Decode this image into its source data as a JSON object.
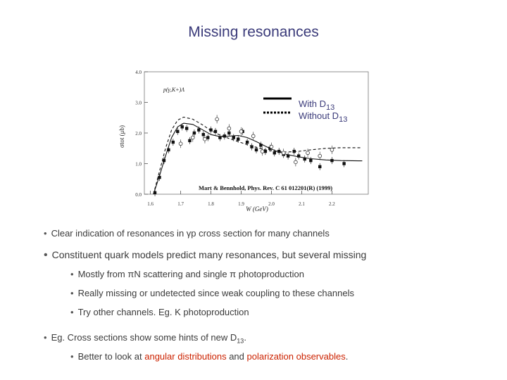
{
  "slide": {
    "title": "Missing resonances"
  },
  "chart_data": {
    "type": "scatter",
    "title": "",
    "inset_label": "p(γ,K+)Λ",
    "xlabel": "W (GeV)",
    "ylabel": "σtot (μb)",
    "xlim": [
      1.58,
      2.32
    ],
    "ylim": [
      0.0,
      4.0
    ],
    "x_ticks": [
      "1.6",
      "1.7",
      "1.8",
      "1.9",
      "2.0",
      "2.1",
      "2.2"
    ],
    "y_ticks": [
      "0.0",
      "1.0",
      "2.0",
      "3.0",
      "4.0"
    ],
    "legend": {
      "placement": "top-right",
      "with_label": "With D13",
      "without_label": "Without D13"
    },
    "citation": "Mart & Bennhold, Phys. Rev. C 61 012201(R) (1999)",
    "series": [
      {
        "name": "With D13",
        "style": "solid",
        "points": [
          [
            1.61,
            0.0
          ],
          [
            1.63,
            0.6
          ],
          [
            1.65,
            1.25
          ],
          [
            1.67,
            1.85
          ],
          [
            1.69,
            2.2
          ],
          [
            1.71,
            2.32
          ],
          [
            1.74,
            2.28
          ],
          [
            1.77,
            2.12
          ],
          [
            1.8,
            1.95
          ],
          [
            1.83,
            1.88
          ],
          [
            1.86,
            1.9
          ],
          [
            1.89,
            1.92
          ],
          [
            1.92,
            1.85
          ],
          [
            1.95,
            1.72
          ],
          [
            1.98,
            1.57
          ],
          [
            2.01,
            1.43
          ],
          [
            2.05,
            1.3
          ],
          [
            2.09,
            1.22
          ],
          [
            2.13,
            1.16
          ],
          [
            2.18,
            1.12
          ],
          [
            2.23,
            1.1
          ],
          [
            2.3,
            1.09
          ]
        ]
      },
      {
        "name": "Without D13",
        "style": "dashed",
        "points": [
          [
            1.61,
            0.0
          ],
          [
            1.63,
            0.75
          ],
          [
            1.65,
            1.5
          ],
          [
            1.67,
            2.1
          ],
          [
            1.69,
            2.42
          ],
          [
            1.71,
            2.52
          ],
          [
            1.74,
            2.45
          ],
          [
            1.77,
            2.28
          ],
          [
            1.8,
            2.08
          ],
          [
            1.83,
            1.93
          ],
          [
            1.86,
            1.82
          ],
          [
            1.89,
            1.72
          ],
          [
            1.92,
            1.62
          ],
          [
            1.95,
            1.53
          ],
          [
            1.98,
            1.45
          ],
          [
            2.01,
            1.4
          ],
          [
            2.05,
            1.38
          ],
          [
            2.09,
            1.4
          ],
          [
            2.13,
            1.45
          ],
          [
            2.18,
            1.5
          ],
          [
            2.23,
            1.52
          ],
          [
            2.3,
            1.52
          ]
        ]
      }
    ],
    "data_filled": [
      [
        1.615,
        0.05
      ],
      [
        1.63,
        0.55
      ],
      [
        1.645,
        1.1
      ],
      [
        1.66,
        1.45
      ],
      [
        1.675,
        1.7
      ],
      [
        1.69,
        2.05
      ],
      [
        1.705,
        2.2
      ],
      [
        1.72,
        2.15
      ],
      [
        1.73,
        1.75
      ],
      [
        1.745,
        2.0
      ],
      [
        1.76,
        2.1
      ],
      [
        1.775,
        1.95
      ],
      [
        1.79,
        1.85
      ],
      [
        1.8,
        2.1
      ],
      [
        1.815,
        2.05
      ],
      [
        1.83,
        1.85
      ],
      [
        1.845,
        1.9
      ],
      [
        1.86,
        2.0
      ],
      [
        1.875,
        1.85
      ],
      [
        1.89,
        1.8
      ],
      [
        1.905,
        2.05
      ],
      [
        1.92,
        1.7
      ],
      [
        1.935,
        1.55
      ],
      [
        1.95,
        1.45
      ],
      [
        1.965,
        1.6
      ],
      [
        1.98,
        1.4
      ],
      [
        1.995,
        1.5
      ],
      [
        2.01,
        1.35
      ],
      [
        2.025,
        1.4
      ],
      [
        2.04,
        1.3
      ],
      [
        2.055,
        1.25
      ],
      [
        2.075,
        1.4
      ],
      [
        2.09,
        1.25
      ],
      [
        2.11,
        1.15
      ],
      [
        2.13,
        1.1
      ],
      [
        2.16,
        0.9
      ],
      [
        2.2,
        1.1
      ],
      [
        2.24,
        1.0
      ]
    ],
    "data_open": [
      [
        1.7,
        1.65
      ],
      [
        1.74,
        1.85
      ],
      [
        1.78,
        1.8
      ],
      [
        1.82,
        2.45
      ],
      [
        1.86,
        2.15
      ],
      [
        1.9,
        2.05
      ],
      [
        1.94,
        1.9
      ],
      [
        1.97,
        1.4
      ],
      [
        2.0,
        1.55
      ],
      [
        2.04,
        1.35
      ],
      [
        2.08,
        1.05
      ],
      [
        2.12,
        1.35
      ],
      [
        2.16,
        1.25
      ],
      [
        2.2,
        1.45
      ]
    ]
  },
  "bullets": {
    "b1": "Clear indication of resonances in γp cross section for many channels",
    "b2": "Constituent quark models predict many resonances, but several missing",
    "s1": "Mostly from πN scattering and single π photoproduction",
    "s2": "Really missing or undetected since weak coupling to these channels",
    "s3": "Try other channels. Eg. K photoproduction",
    "b3_pre": "Eg. Cross sections show some hints of new D",
    "b3_sub": "13",
    "b3_post": ".",
    "s4_pre": "Better to look at ",
    "s4_red1": "angular distributions",
    "s4_mid": " and ",
    "s4_red2": "polarization observables",
    "s4_post": ".",
    "bullet_char": "•"
  }
}
